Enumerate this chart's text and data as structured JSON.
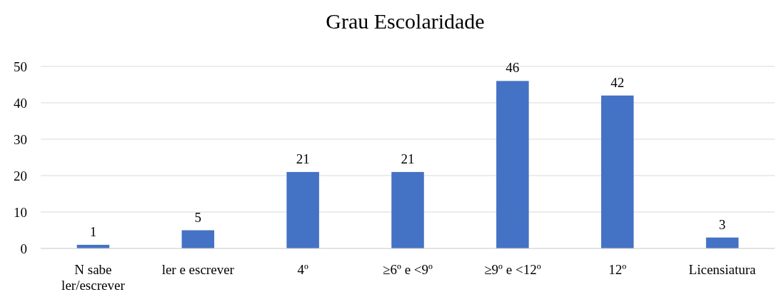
{
  "chart_data": {
    "type": "bar",
    "title": "Grau Escolaridade",
    "categories": [
      "N sabe ler/escrever",
      "ler e escrever",
      "4º",
      "≥6º e <9º",
      "≥9º e <12º",
      "12º",
      "Licensiatura"
    ],
    "values": [
      1,
      5,
      21,
      21,
      46,
      42,
      3
    ],
    "color": "#4472c4",
    "ylim": [
      0,
      50
    ],
    "yticks": [
      0,
      10,
      20,
      30,
      40,
      50
    ],
    "grid": "y",
    "data_labels": true
  }
}
